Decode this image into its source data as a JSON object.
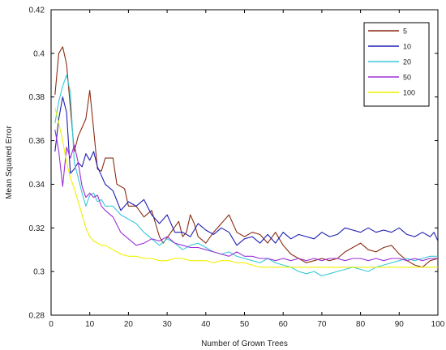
{
  "chart_data": {
    "type": "line",
    "xlabel": "Number of Grown Trees",
    "ylabel": "Mean Squared Error",
    "xlim": [
      0,
      100
    ],
    "ylim": [
      0.28,
      0.42
    ],
    "xticks": [
      0,
      10,
      20,
      30,
      40,
      50,
      60,
      70,
      80,
      90,
      100
    ],
    "yticks": [
      0.28,
      0.3,
      0.32,
      0.34,
      0.36,
      0.38,
      0.4,
      0.42
    ],
    "xtick_labels": [
      "0",
      "10",
      "20",
      "30",
      "40",
      "50",
      "60",
      "70",
      "80",
      "90",
      "100"
    ],
    "ytick_labels": [
      "0.28",
      "0.3",
      "0.32",
      "0.34",
      "0.36",
      "0.38",
      "0.4",
      "0.42"
    ],
    "grid": false,
    "legend_position": "top-right",
    "series": [
      {
        "name": "5",
        "color": "#8b2c14",
        "points": [
          [
            1,
            0.381
          ],
          [
            2,
            0.4
          ],
          [
            3,
            0.403
          ],
          [
            4,
            0.395
          ],
          [
            5,
            0.375
          ],
          [
            6,
            0.355
          ],
          [
            7,
            0.362
          ],
          [
            8,
            0.366
          ],
          [
            9,
            0.37
          ],
          [
            10,
            0.383
          ],
          [
            11,
            0.365
          ],
          [
            12,
            0.347
          ],
          [
            13,
            0.346
          ],
          [
            14,
            0.352
          ],
          [
            16,
            0.352
          ],
          [
            17,
            0.34
          ],
          [
            19,
            0.338
          ],
          [
            20,
            0.33
          ],
          [
            22,
            0.33
          ],
          [
            24,
            0.325
          ],
          [
            26,
            0.328
          ],
          [
            27,
            0.322
          ],
          [
            28,
            0.316
          ],
          [
            29,
            0.313
          ],
          [
            31,
            0.318
          ],
          [
            33,
            0.323
          ],
          [
            34,
            0.316
          ],
          [
            35,
            0.318
          ],
          [
            36,
            0.326
          ],
          [
            37,
            0.322
          ],
          [
            38,
            0.316
          ],
          [
            40,
            0.313
          ],
          [
            42,
            0.318
          ],
          [
            44,
            0.322
          ],
          [
            46,
            0.326
          ],
          [
            47,
            0.322
          ],
          [
            48,
            0.318
          ],
          [
            50,
            0.316
          ],
          [
            52,
            0.318
          ],
          [
            54,
            0.317
          ],
          [
            56,
            0.313
          ],
          [
            58,
            0.318
          ],
          [
            60,
            0.312
          ],
          [
            62,
            0.308
          ],
          [
            64,
            0.306
          ],
          [
            66,
            0.304
          ],
          [
            68,
            0.305
          ],
          [
            70,
            0.306
          ],
          [
            72,
            0.305
          ],
          [
            74,
            0.306
          ],
          [
            76,
            0.309
          ],
          [
            78,
            0.311
          ],
          [
            80,
            0.313
          ],
          [
            82,
            0.31
          ],
          [
            84,
            0.309
          ],
          [
            86,
            0.311
          ],
          [
            88,
            0.312
          ],
          [
            90,
            0.308
          ],
          [
            92,
            0.305
          ],
          [
            94,
            0.303
          ],
          [
            96,
            0.302
          ],
          [
            98,
            0.305
          ],
          [
            100,
            0.306
          ]
        ]
      },
      {
        "name": "10",
        "color": "#1f1fb4",
        "points": [
          [
            1,
            0.355
          ],
          [
            2,
            0.37
          ],
          [
            3,
            0.38
          ],
          [
            4,
            0.373
          ],
          [
            5,
            0.345
          ],
          [
            6,
            0.347
          ],
          [
            7,
            0.35
          ],
          [
            8,
            0.348
          ],
          [
            9,
            0.354
          ],
          [
            10,
            0.351
          ],
          [
            11,
            0.355
          ],
          [
            12,
            0.348
          ],
          [
            13,
            0.344
          ],
          [
            14,
            0.34
          ],
          [
            16,
            0.337
          ],
          [
            18,
            0.328
          ],
          [
            20,
            0.332
          ],
          [
            22,
            0.33
          ],
          [
            24,
            0.333
          ],
          [
            26,
            0.326
          ],
          [
            28,
            0.322
          ],
          [
            30,
            0.326
          ],
          [
            32,
            0.318
          ],
          [
            34,
            0.318
          ],
          [
            36,
            0.316
          ],
          [
            38,
            0.322
          ],
          [
            40,
            0.319
          ],
          [
            42,
            0.317
          ],
          [
            44,
            0.32
          ],
          [
            46,
            0.318
          ],
          [
            48,
            0.312
          ],
          [
            50,
            0.315
          ],
          [
            52,
            0.316
          ],
          [
            54,
            0.313
          ],
          [
            56,
            0.317
          ],
          [
            58,
            0.313
          ],
          [
            60,
            0.318
          ],
          [
            62,
            0.315
          ],
          [
            64,
            0.317
          ],
          [
            66,
            0.316
          ],
          [
            68,
            0.315
          ],
          [
            70,
            0.318
          ],
          [
            72,
            0.316
          ],
          [
            74,
            0.317
          ],
          [
            76,
            0.32
          ],
          [
            78,
            0.319
          ],
          [
            80,
            0.318
          ],
          [
            82,
            0.32
          ],
          [
            84,
            0.318
          ],
          [
            86,
            0.319
          ],
          [
            88,
            0.318
          ],
          [
            90,
            0.32
          ],
          [
            92,
            0.317
          ],
          [
            94,
            0.316
          ],
          [
            96,
            0.318
          ],
          [
            98,
            0.316
          ],
          [
            99,
            0.318
          ],
          [
            100,
            0.314
          ]
        ]
      },
      {
        "name": "20",
        "color": "#38c8d8",
        "points": [
          [
            1,
            0.368
          ],
          [
            2,
            0.378
          ],
          [
            3,
            0.385
          ],
          [
            4,
            0.39
          ],
          [
            5,
            0.382
          ],
          [
            6,
            0.35
          ],
          [
            7,
            0.343
          ],
          [
            8,
            0.336
          ],
          [
            9,
            0.33
          ],
          [
            10,
            0.335
          ],
          [
            11,
            0.336
          ],
          [
            12,
            0.332
          ],
          [
            13,
            0.333
          ],
          [
            14,
            0.33
          ],
          [
            16,
            0.33
          ],
          [
            18,
            0.326
          ],
          [
            20,
            0.324
          ],
          [
            22,
            0.322
          ],
          [
            24,
            0.318
          ],
          [
            26,
            0.315
          ],
          [
            28,
            0.312
          ],
          [
            30,
            0.315
          ],
          [
            32,
            0.313
          ],
          [
            34,
            0.31
          ],
          [
            36,
            0.312
          ],
          [
            38,
            0.313
          ],
          [
            40,
            0.311
          ],
          [
            42,
            0.309
          ],
          [
            44,
            0.308
          ],
          [
            46,
            0.309
          ],
          [
            48,
            0.307
          ],
          [
            50,
            0.306
          ],
          [
            52,
            0.305
          ],
          [
            54,
            0.304
          ],
          [
            56,
            0.306
          ],
          [
            58,
            0.304
          ],
          [
            60,
            0.303
          ],
          [
            62,
            0.302
          ],
          [
            64,
            0.3
          ],
          [
            66,
            0.299
          ],
          [
            68,
            0.3
          ],
          [
            70,
            0.298
          ],
          [
            72,
            0.299
          ],
          [
            74,
            0.3
          ],
          [
            76,
            0.301
          ],
          [
            78,
            0.302
          ],
          [
            80,
            0.301
          ],
          [
            82,
            0.3
          ],
          [
            84,
            0.302
          ],
          [
            86,
            0.303
          ],
          [
            88,
            0.304
          ],
          [
            90,
            0.305
          ],
          [
            92,
            0.306
          ],
          [
            94,
            0.305
          ],
          [
            96,
            0.306
          ],
          [
            98,
            0.307
          ],
          [
            100,
            0.307
          ]
        ]
      },
      {
        "name": "50",
        "color": "#9b30d8",
        "points": [
          [
            1,
            0.365
          ],
          [
            2,
            0.355
          ],
          [
            3,
            0.339
          ],
          [
            4,
            0.357
          ],
          [
            5,
            0.352
          ],
          [
            6,
            0.358
          ],
          [
            7,
            0.35
          ],
          [
            8,
            0.339
          ],
          [
            9,
            0.334
          ],
          [
            10,
            0.336
          ],
          [
            11,
            0.334
          ],
          [
            12,
            0.335
          ],
          [
            13,
            0.33
          ],
          [
            14,
            0.328
          ],
          [
            16,
            0.325
          ],
          [
            18,
            0.318
          ],
          [
            20,
            0.315
          ],
          [
            22,
            0.312
          ],
          [
            24,
            0.313
          ],
          [
            26,
            0.315
          ],
          [
            28,
            0.314
          ],
          [
            30,
            0.316
          ],
          [
            32,
            0.313
          ],
          [
            34,
            0.312
          ],
          [
            36,
            0.311
          ],
          [
            38,
            0.311
          ],
          [
            40,
            0.31
          ],
          [
            42,
            0.309
          ],
          [
            44,
            0.308
          ],
          [
            46,
            0.307
          ],
          [
            48,
            0.309
          ],
          [
            50,
            0.307
          ],
          [
            52,
            0.307
          ],
          [
            54,
            0.306
          ],
          [
            56,
            0.306
          ],
          [
            58,
            0.305
          ],
          [
            60,
            0.306
          ],
          [
            62,
            0.305
          ],
          [
            64,
            0.306
          ],
          [
            66,
            0.305
          ],
          [
            68,
            0.306
          ],
          [
            70,
            0.305
          ],
          [
            72,
            0.306
          ],
          [
            74,
            0.306
          ],
          [
            76,
            0.305
          ],
          [
            78,
            0.306
          ],
          [
            80,
            0.306
          ],
          [
            82,
            0.305
          ],
          [
            84,
            0.306
          ],
          [
            86,
            0.305
          ],
          [
            88,
            0.306
          ],
          [
            90,
            0.306
          ],
          [
            92,
            0.305
          ],
          [
            94,
            0.306
          ],
          [
            96,
            0.305
          ],
          [
            98,
            0.306
          ],
          [
            100,
            0.306
          ]
        ]
      },
      {
        "name": "100",
        "color": "#f0f000",
        "points": [
          [
            1,
            0.375
          ],
          [
            2,
            0.368
          ],
          [
            3,
            0.36
          ],
          [
            4,
            0.35
          ],
          [
            5,
            0.343
          ],
          [
            6,
            0.338
          ],
          [
            7,
            0.332
          ],
          [
            8,
            0.326
          ],
          [
            9,
            0.32
          ],
          [
            10,
            0.316
          ],
          [
            11,
            0.314
          ],
          [
            12,
            0.313
          ],
          [
            13,
            0.312
          ],
          [
            14,
            0.312
          ],
          [
            16,
            0.31
          ],
          [
            18,
            0.308
          ],
          [
            20,
            0.307
          ],
          [
            22,
            0.307
          ],
          [
            24,
            0.306
          ],
          [
            26,
            0.306
          ],
          [
            28,
            0.305
          ],
          [
            30,
            0.305
          ],
          [
            32,
            0.306
          ],
          [
            34,
            0.306
          ],
          [
            36,
            0.305
          ],
          [
            38,
            0.305
          ],
          [
            40,
            0.305
          ],
          [
            42,
            0.304
          ],
          [
            44,
            0.305
          ],
          [
            46,
            0.305
          ],
          [
            48,
            0.304
          ],
          [
            50,
            0.304
          ],
          [
            52,
            0.303
          ],
          [
            54,
            0.302
          ],
          [
            56,
            0.302
          ],
          [
            58,
            0.302
          ],
          [
            60,
            0.302
          ],
          [
            62,
            0.302
          ],
          [
            64,
            0.302
          ],
          [
            66,
            0.302
          ],
          [
            68,
            0.302
          ],
          [
            70,
            0.302
          ],
          [
            72,
            0.302
          ],
          [
            74,
            0.302
          ],
          [
            76,
            0.302
          ],
          [
            78,
            0.302
          ],
          [
            80,
            0.302
          ],
          [
            82,
            0.302
          ],
          [
            84,
            0.302
          ],
          [
            86,
            0.302
          ],
          [
            88,
            0.302
          ],
          [
            90,
            0.302
          ],
          [
            92,
            0.302
          ],
          [
            94,
            0.302
          ],
          [
            96,
            0.302
          ],
          [
            98,
            0.302
          ],
          [
            100,
            0.302
          ]
        ]
      }
    ]
  }
}
